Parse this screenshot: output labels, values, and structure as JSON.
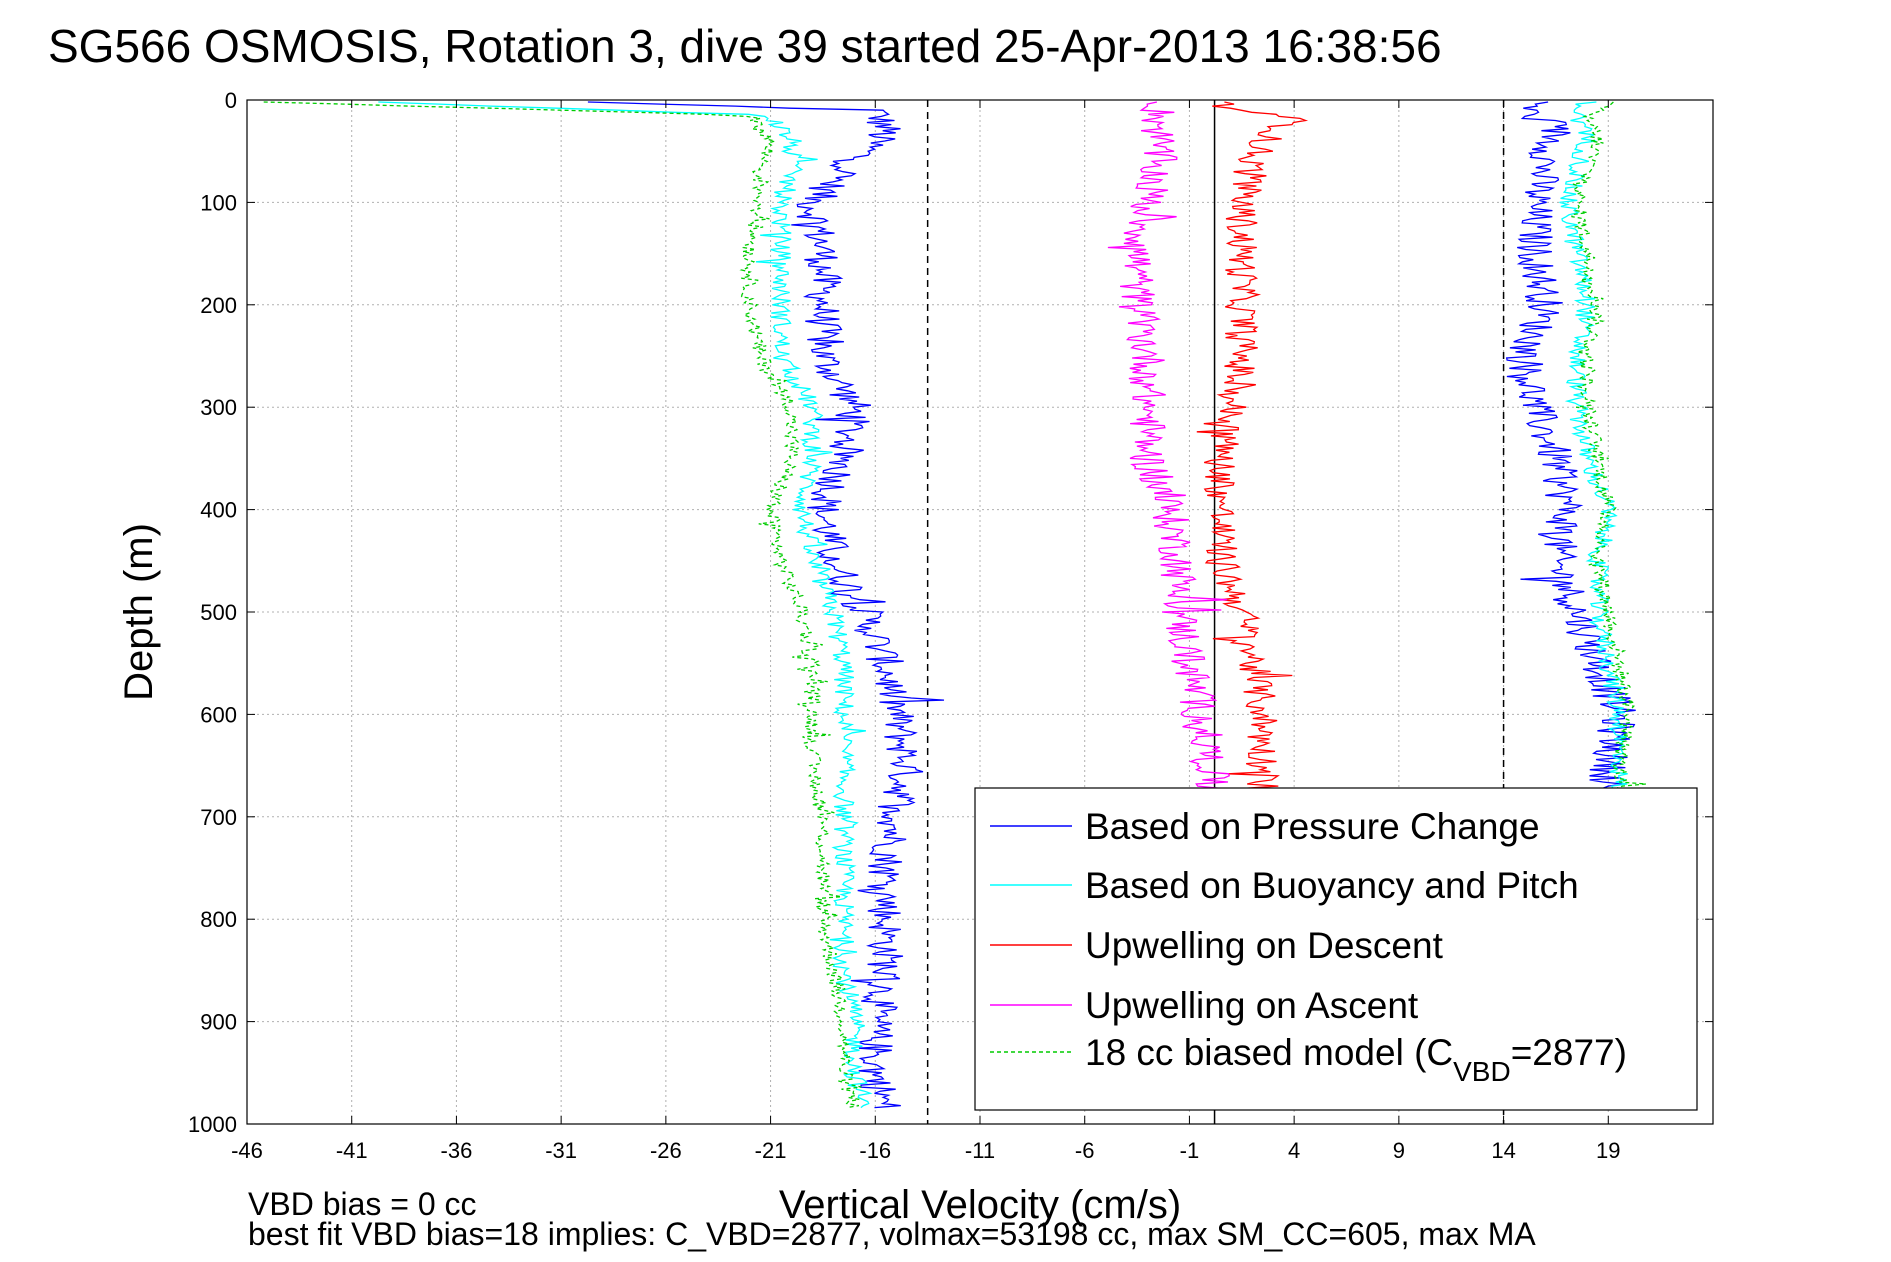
{
  "chart_data": {
    "type": "line",
    "title": "SG566 OSMOSIS, Rotation 3, dive 39 started 25-Apr-2013 16:38:56",
    "xlabel": "Vertical Velocity (cm/s)",
    "ylabel": "Depth (m)",
    "xlim": [
      -46,
      24
    ],
    "ylim": [
      0,
      1000
    ],
    "y_reversed": true,
    "xticks": [
      -46,
      -41,
      -36,
      -31,
      -26,
      -21,
      -16,
      -11,
      -6,
      -1,
      4,
      9,
      14,
      19
    ],
    "yticks": [
      0,
      100,
      200,
      300,
      400,
      500,
      600,
      700,
      800,
      900,
      1000
    ],
    "grid": true,
    "legend_position": "bottom-right",
    "reference_lines": [
      {
        "x": -13.5,
        "style": "dashed",
        "color": "#000000"
      },
      {
        "x": 0.2,
        "style": "solid",
        "color": "#000000"
      },
      {
        "x": 14.0,
        "style": "dashed",
        "color": "#000000"
      }
    ],
    "series": [
      {
        "name": "Based on Pressure Change",
        "color": "#0000ff",
        "style": "solid",
        "segments": [
          {
            "depth": [
              2,
              10,
              30,
              60,
              100,
              150,
              200,
              250,
              300,
              350,
              400,
              450,
              500,
              550,
              600,
              650,
              700,
              750,
              800,
              850,
              900,
              950,
              985
            ],
            "value": [
              -30,
              -16,
              -15.5,
              -17,
              -19,
              -18.5,
              -18.5,
              -18.5,
              -17,
              -17.5,
              -18.5,
              -18,
              -16.5,
              -15.5,
              -15,
              -14.5,
              -15,
              -15.5,
              -15.5,
              -15.5,
              -16,
              -16,
              -15.5
            ]
          },
          {
            "depth": [
              2,
              10,
              30,
              60,
              100,
              150,
              200,
              250,
              300,
              350,
              400,
              450,
              500,
              550,
              600,
              650,
              700,
              750,
              800,
              850,
              900,
              950,
              985
            ],
            "value": [
              16,
              15,
              16.5,
              16,
              15.5,
              15.5,
              16,
              15,
              15.5,
              16.5,
              17,
              16.5,
              17.5,
              18.5,
              19.5,
              19,
              19,
              19,
              19,
              19,
              19,
              19,
              19
            ]
          }
        ],
        "noise": 0.9
      },
      {
        "name": "Based on Buoyancy and Pitch",
        "color": "#00ffff",
        "style": "solid",
        "segments": [
          {
            "depth": [
              2,
              15,
              40,
              70,
              100,
              150,
              200,
              250,
              300,
              350,
              400,
              450,
              500,
              550,
              600,
              650,
              700,
              750,
              800,
              850,
              900,
              950,
              985
            ],
            "value": [
              -40,
              -21,
              -20,
              -20,
              -20.5,
              -20.5,
              -20.5,
              -20.5,
              -19,
              -19,
              -19.5,
              -19,
              -18,
              -17.5,
              -17.5,
              -17.5,
              -17.5,
              -17.5,
              -17.5,
              -17.5,
              -17,
              -17,
              -16.5
            ]
          },
          {
            "depth": [
              2,
              15,
              40,
              70,
              100,
              150,
              200,
              250,
              300,
              350,
              400,
              450,
              500,
              550,
              600,
              650,
              700,
              750,
              800,
              850,
              900,
              950,
              985
            ],
            "value": [
              18,
              17.5,
              18,
              17.5,
              17,
              17.5,
              18,
              17.5,
              17.5,
              18,
              19,
              18.5,
              18.5,
              19,
              19.5,
              19.5,
              19.5,
              19.5,
              19.5,
              19.5,
              19.5,
              19.5,
              19.5
            ]
          }
        ],
        "noise": 0.5
      },
      {
        "name": "Upwelling on Descent",
        "color": "#ff0000",
        "style": "solid",
        "segments": [
          {
            "depth": [
              2,
              20,
              40,
              60,
              100,
              150,
              200,
              250,
              300,
              350,
              400,
              450,
              500,
              550,
              600,
              650,
              680
            ],
            "value": [
              0,
              4,
              2.5,
              2,
              1.5,
              1.5,
              1.5,
              1.5,
              1,
              0.5,
              0.5,
              0.5,
              1.5,
              2,
              2.5,
              2.5,
              2.5
            ]
          }
        ],
        "noise": 0.8
      },
      {
        "name": "Upwelling on Ascent",
        "color": "#ff00ff",
        "style": "solid",
        "segments": [
          {
            "depth": [
              2,
              30,
              60,
              100,
              150,
              200,
              250,
              300,
              350,
              400,
              450,
              500,
              550,
              600,
              650,
              680
            ],
            "value": [
              -2.5,
              -2.5,
              -2.5,
              -3,
              -3.5,
              -3.5,
              -3,
              -3,
              -3,
              -2,
              -1.5,
              -1.5,
              -1,
              -0.5,
              0,
              0
            ]
          }
        ],
        "noise": 0.9
      },
      {
        "name": "18 cc biased model (C",
        "name_sub": "VBD",
        "name_tail": "=2877)",
        "color": "#00cc00",
        "style": "dashed",
        "segments": [
          {
            "depth": [
              2,
              15,
              40,
              70,
              100,
              150,
              200,
              250,
              300,
              350,
              400,
              450,
              500,
              550,
              600,
              650,
              700,
              750,
              800,
              850,
              900,
              950,
              985
            ],
            "value": [
              -45,
              -22,
              -21,
              -21.5,
              -21.5,
              -22,
              -22,
              -21.5,
              -20,
              -20,
              -21,
              -20.5,
              -19.5,
              -19,
              -19,
              -19,
              -18.5,
              -18.5,
              -18.5,
              -18,
              -17.5,
              -17.5,
              -17
            ]
          },
          {
            "depth": [
              2,
              15,
              40,
              70,
              100,
              150,
              200,
              250,
              300,
              350,
              400,
              450,
              500,
              550,
              600,
              650,
              700,
              750,
              800,
              850,
              900,
              950,
              985
            ],
            "value": [
              19,
              18,
              18.5,
              18,
              17.5,
              18,
              18.5,
              18,
              18,
              18.5,
              19,
              18.5,
              19,
              19.5,
              20,
              19.5,
              20,
              20,
              20,
              20,
              20,
              20,
              20
            ]
          }
        ],
        "noise": 0.4
      }
    ]
  },
  "footer": {
    "line1": "VBD bias = 0 cc",
    "line2": "best fit VBD bias=18 implies: C_VBD=2877, volmax=53198 cc, max SM_CC=605, max MA"
  },
  "colors": {
    "grid": "#b0b0b0",
    "axis": "#000000",
    "background": "#ffffff"
  }
}
